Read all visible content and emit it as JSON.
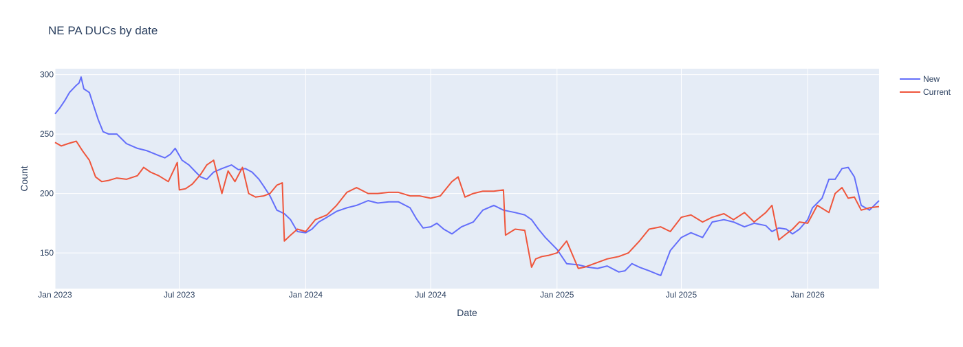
{
  "chart_data": {
    "type": "line",
    "title": "NE PA DUCs by date",
    "xlabel": "Date",
    "ylabel": "Count",
    "x_ticks": [
      "Jan 2023",
      "Jul 2023",
      "Jan 2024",
      "Jul 2024",
      "Jan 2025",
      "Jul 2025",
      "Jan 2026"
    ],
    "y_ticks": [
      150,
      200,
      250,
      300
    ],
    "xlim": [
      "2023-01-01",
      "2026-04-15"
    ],
    "ylim": [
      120,
      305
    ],
    "grid": true,
    "legend_position": "top-right",
    "plot_bgcolor": "#E5ECF6",
    "series": [
      {
        "name": "New",
        "color": "#636EFA",
        "x": [
          "2023-01-01",
          "2023-01-08",
          "2023-01-15",
          "2023-01-22",
          "2023-02-01",
          "2023-02-05",
          "2023-02-08",
          "2023-02-12",
          "2023-02-20",
          "2023-02-25",
          "2023-03-05",
          "2023-03-12",
          "2023-03-20",
          "2023-04-01",
          "2023-04-15",
          "2023-05-01",
          "2023-05-15",
          "2023-06-01",
          "2023-06-10",
          "2023-06-18",
          "2023-06-25",
          "2023-07-05",
          "2023-07-15",
          "2023-07-25",
          "2023-08-01",
          "2023-08-10",
          "2023-08-20",
          "2023-09-01",
          "2023-09-15",
          "2023-09-25",
          "2023-10-05",
          "2023-10-15",
          "2023-10-25",
          "2023-11-01",
          "2023-11-10",
          "2023-11-20",
          "2023-12-01",
          "2023-12-10",
          "2023-12-20",
          "2024-01-01",
          "2024-01-10",
          "2024-01-20",
          "2024-02-01",
          "2024-02-15",
          "2024-03-01",
          "2024-03-15",
          "2024-04-01",
          "2024-04-15",
          "2024-05-01",
          "2024-05-15",
          "2024-06-01",
          "2024-06-10",
          "2024-06-20",
          "2024-07-01",
          "2024-07-10",
          "2024-07-20",
          "2024-08-01",
          "2024-08-15",
          "2024-09-01",
          "2024-09-15",
          "2024-10-01",
          "2024-10-15",
          "2024-11-01",
          "2024-11-15",
          "2024-11-25",
          "2024-12-05",
          "2024-12-15",
          "2025-01-01",
          "2025-01-15",
          "2025-02-01",
          "2025-02-15",
          "2025-03-01",
          "2025-03-15",
          "2025-04-01",
          "2025-04-10",
          "2025-04-20",
          "2025-05-01",
          "2025-05-15",
          "2025-06-01",
          "2025-06-15",
          "2025-07-01",
          "2025-07-15",
          "2025-08-01",
          "2025-08-15",
          "2025-09-01",
          "2025-09-15",
          "2025-10-01",
          "2025-10-15",
          "2025-11-01",
          "2025-11-10",
          "2025-11-20",
          "2025-12-01",
          "2025-12-10",
          "2025-12-20",
          "2026-01-01",
          "2026-01-08",
          "2026-01-15",
          "2026-01-22",
          "2026-02-01",
          "2026-02-10",
          "2026-02-20",
          "2026-03-01",
          "2026-03-10",
          "2026-03-20",
          "2026-04-01",
          "2026-04-15"
        ],
        "y": [
          267,
          272,
          278,
          285,
          291,
          293,
          298,
          288,
          285,
          276,
          262,
          252,
          250,
          250,
          242,
          238,
          236,
          232,
          230,
          233,
          238,
          228,
          224,
          218,
          214,
          212,
          218,
          221,
          224,
          220,
          221,
          218,
          212,
          206,
          198,
          186,
          183,
          178,
          168,
          167,
          170,
          176,
          180,
          185,
          188,
          190,
          194,
          192,
          193,
          193,
          188,
          179,
          171,
          172,
          175,
          170,
          166,
          172,
          176,
          186,
          190,
          186,
          184,
          182,
          178,
          170,
          163,
          153,
          141,
          140,
          138,
          137,
          139,
          134,
          135,
          141,
          138,
          135,
          131,
          152,
          163,
          167,
          163,
          176,
          178,
          176,
          172,
          175,
          173,
          168,
          171,
          170,
          166,
          170,
          178,
          188,
          192,
          196,
          212,
          212,
          221,
          222,
          214,
          190,
          186,
          194
        ]
      },
      {
        "name": "Current",
        "color": "#EF553B",
        "x": [
          "2023-01-01",
          "2023-01-10",
          "2023-01-20",
          "2023-02-01",
          "2023-02-10",
          "2023-02-20",
          "2023-03-01",
          "2023-03-10",
          "2023-03-20",
          "2023-04-01",
          "2023-04-15",
          "2023-05-01",
          "2023-05-10",
          "2023-05-20",
          "2023-06-01",
          "2023-06-15",
          "2023-06-28",
          "2023-07-01",
          "2023-07-10",
          "2023-07-20",
          "2023-08-01",
          "2023-08-10",
          "2023-08-20",
          "2023-09-01",
          "2023-09-10",
          "2023-09-20",
          "2023-10-01",
          "2023-10-10",
          "2023-10-20",
          "2023-11-01",
          "2023-11-10",
          "2023-11-20",
          "2023-11-28",
          "2023-12-01",
          "2023-12-10",
          "2023-12-20",
          "2024-01-01",
          "2024-01-15",
          "2024-02-01",
          "2024-02-15",
          "2024-03-01",
          "2024-03-15",
          "2024-04-01",
          "2024-04-15",
          "2024-05-01",
          "2024-05-15",
          "2024-06-01",
          "2024-06-15",
          "2024-07-01",
          "2024-07-15",
          "2024-08-01",
          "2024-08-10",
          "2024-08-20",
          "2024-09-01",
          "2024-09-15",
          "2024-10-01",
          "2024-10-15",
          "2024-10-18",
          "2024-11-01",
          "2024-11-15",
          "2024-11-25",
          "2024-12-01",
          "2024-12-10",
          "2024-12-20",
          "2025-01-01",
          "2025-01-15",
          "2025-02-01",
          "2025-02-10",
          "2025-02-15",
          "2025-03-01",
          "2025-03-15",
          "2025-04-01",
          "2025-04-15",
          "2025-05-01",
          "2025-05-15",
          "2025-06-01",
          "2025-06-15",
          "2025-07-01",
          "2025-07-15",
          "2025-08-01",
          "2025-08-15",
          "2025-09-01",
          "2025-09-15",
          "2025-10-01",
          "2025-10-15",
          "2025-11-01",
          "2025-11-10",
          "2025-11-20",
          "2025-12-01",
          "2025-12-10",
          "2025-12-20",
          "2026-01-01",
          "2026-01-15",
          "2026-02-01",
          "2026-02-10",
          "2026-02-20",
          "2026-03-01",
          "2026-03-10",
          "2026-03-20",
          "2026-04-01",
          "2026-04-15"
        ],
        "y": [
          243,
          240,
          242,
          244,
          236,
          228,
          214,
          210,
          211,
          213,
          212,
          215,
          222,
          218,
          215,
          210,
          226,
          203,
          204,
          208,
          216,
          224,
          228,
          200,
          219,
          210,
          222,
          200,
          197,
          198,
          200,
          207,
          209,
          160,
          165,
          170,
          168,
          178,
          182,
          190,
          201,
          205,
          200,
          200,
          201,
          201,
          198,
          198,
          196,
          198,
          210,
          214,
          197,
          200,
          202,
          202,
          203,
          165,
          170,
          169,
          138,
          145,
          147,
          148,
          150,
          160,
          137,
          138,
          139,
          142,
          145,
          147,
          150,
          160,
          170,
          172,
          168,
          180,
          182,
          176,
          180,
          183,
          178,
          184,
          176,
          184,
          190,
          161,
          166,
          170,
          176,
          175,
          190,
          184,
          200,
          205,
          196,
          197,
          186,
          188,
          189
        ]
      }
    ]
  }
}
